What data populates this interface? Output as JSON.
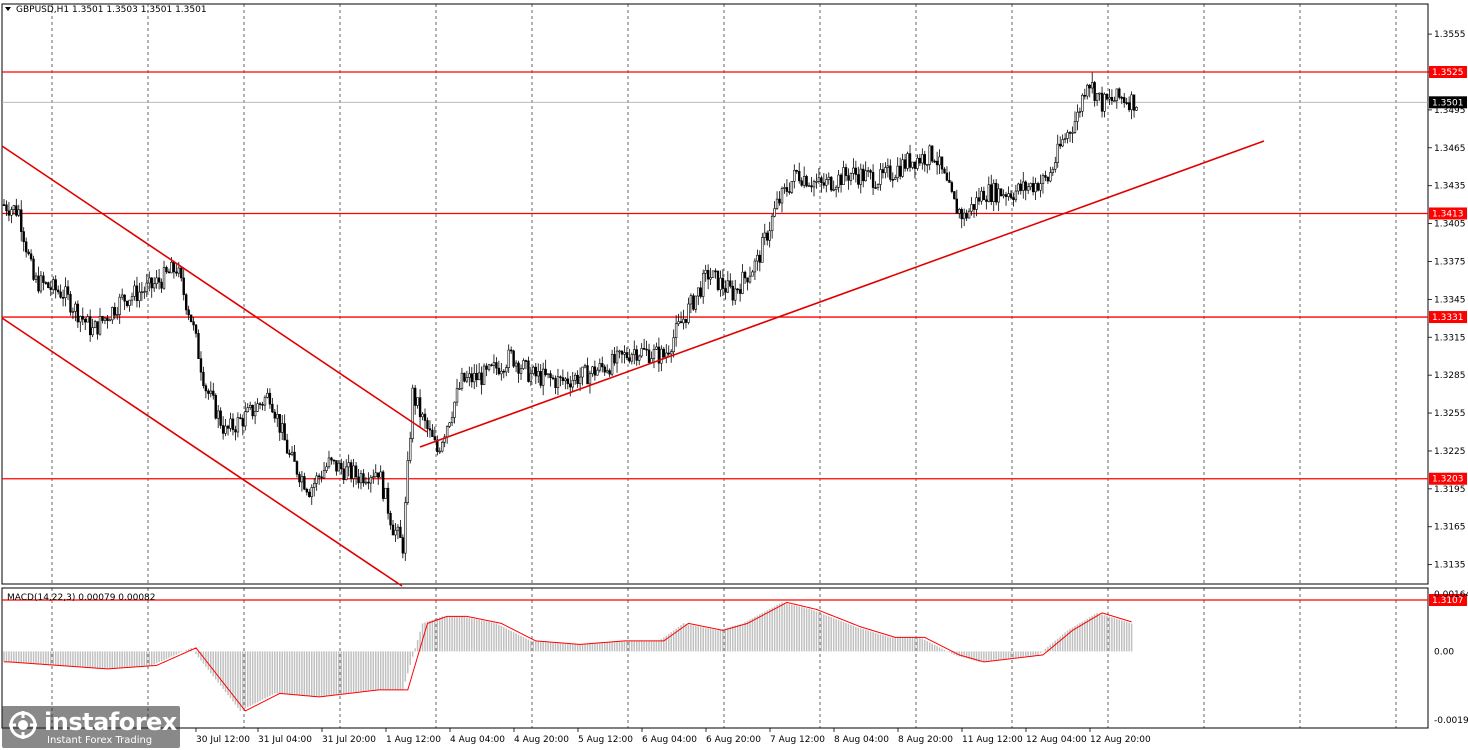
{
  "header": {
    "symbol_line": "GBPUSD,H1  1.3501 1.3503 1.3501 1.3501",
    "macd_label": "MACD(14,22,3) 0.00079 0.00082"
  },
  "colors": {
    "level": "#ff0000",
    "trend": "#e00000",
    "candle": "#000000",
    "grid": "#000000",
    "macd_hist": "#c0c0c0",
    "macd_signal": "#ff0000",
    "current_price_tag": "#000000"
  },
  "chart_data": [
    {
      "type": "candlestick",
      "symbol": "GBPUSD",
      "timeframe": "H1",
      "ohlc_last": [
        1.3501,
        1.3503,
        1.3501,
        1.3501
      ],
      "ylim": [
        1.3107,
        1.3575
      ],
      "y_ticks": [
        "1.3555",
        "1.3525",
        "1.3495",
        "1.3465",
        "1.3435",
        "1.3405",
        "1.3375",
        "1.3345",
        "1.3315",
        "1.3285",
        "1.3255",
        "1.3225",
        "1.3195",
        "1.3165",
        "1.3135"
      ],
      "x_ticks": [
        "30 Jul 12:00",
        "31 Jul 04:00",
        "31 Jul 20:00",
        "1 Aug 12:00",
        "4 Aug 04:00",
        "4 Aug 20:00",
        "5 Aug 12:00",
        "6 Aug 04:00",
        "6 Aug 20:00",
        "7 Aug 12:00",
        "8 Aug 04:00",
        "8 Aug 20:00",
        "11 Aug 12:00",
        "12 Aug 04:00",
        "12 Aug 20:00"
      ],
      "horizontal_levels": [
        "1.3525",
        "1.3413",
        "1.3331",
        "1.3203",
        "1.3107"
      ],
      "current_price": "1.3501",
      "approx_close_path": [
        [
          0,
          1.342
        ],
        [
          6,
          1.3415
        ],
        [
          12,
          1.336
        ],
        [
          24,
          1.335
        ],
        [
          36,
          1.332
        ],
        [
          48,
          1.3345
        ],
        [
          60,
          1.3355
        ],
        [
          70,
          1.337
        ],
        [
          76,
          1.333
        ],
        [
          82,
          1.3275
        ],
        [
          90,
          1.324
        ],
        [
          100,
          1.3255
        ],
        [
          108,
          1.327
        ],
        [
          116,
          1.322
        ],
        [
          124,
          1.3195
        ],
        [
          132,
          1.3215
        ],
        [
          144,
          1.3205
        ],
        [
          152,
          1.321
        ],
        [
          158,
          1.3165
        ],
        [
          162,
          1.315
        ],
        [
          166,
          1.327
        ],
        [
          170,
          1.325
        ],
        [
          176,
          1.3225
        ],
        [
          186,
          1.328
        ],
        [
          196,
          1.3285
        ],
        [
          206,
          1.33
        ],
        [
          214,
          1.3285
        ],
        [
          226,
          1.328
        ],
        [
          236,
          1.3285
        ],
        [
          248,
          1.3295
        ],
        [
          256,
          1.3305
        ],
        [
          268,
          1.33
        ],
        [
          276,
          1.333
        ],
        [
          286,
          1.3365
        ],
        [
          296,
          1.335
        ],
        [
          306,
          1.3375
        ],
        [
          314,
          1.342
        ],
        [
          322,
          1.3445
        ],
        [
          332,
          1.3435
        ],
        [
          344,
          1.3445
        ],
        [
          356,
          1.344
        ],
        [
          368,
          1.3455
        ],
        [
          378,
          1.346
        ],
        [
          386,
          1.342
        ],
        [
          390,
          1.341
        ],
        [
          398,
          1.343
        ],
        [
          410,
          1.343
        ],
        [
          424,
          1.344
        ],
        [
          430,
          1.347
        ],
        [
          436,
          1.349
        ],
        [
          440,
          1.352
        ],
        [
          446,
          1.35
        ],
        [
          454,
          1.3505
        ],
        [
          460,
          1.3501
        ]
      ]
    },
    {
      "type": "macd",
      "label": "MACD(14,22,3) 0.00079 0.00082",
      "ylim": [
        -0.00196,
        0.00164
      ],
      "y_ticks": [
        "0.00164",
        "0.00",
        "-0.00196"
      ],
      "approx_hist_path": [
        [
          0,
          -0.0003
        ],
        [
          40,
          -0.0005
        ],
        [
          60,
          -0.0004
        ],
        [
          76,
          0.0001
        ],
        [
          86,
          -0.0008
        ],
        [
          96,
          -0.0017
        ],
        [
          110,
          -0.0012
        ],
        [
          126,
          -0.0013
        ],
        [
          150,
          -0.0011
        ],
        [
          162,
          -0.0011
        ],
        [
          170,
          0.0008
        ],
        [
          178,
          0.001
        ],
        [
          186,
          0.001
        ],
        [
          200,
          0.0008
        ],
        [
          214,
          0.0003
        ],
        [
          232,
          0.0002
        ],
        [
          250,
          0.0003
        ],
        [
          266,
          0.0003
        ],
        [
          276,
          0.0008
        ],
        [
          290,
          0.0006
        ],
        [
          300,
          0.0008
        ],
        [
          316,
          0.0014
        ],
        [
          328,
          0.0012
        ],
        [
          346,
          0.0007
        ],
        [
          360,
          0.0004
        ],
        [
          372,
          0.0004
        ],
        [
          386,
          -0.0001
        ],
        [
          396,
          -0.0003
        ],
        [
          420,
          -0.0001
        ],
        [
          432,
          0.0006
        ],
        [
          444,
          0.0011
        ],
        [
          458,
          0.0008
        ]
      ]
    }
  ]
}
